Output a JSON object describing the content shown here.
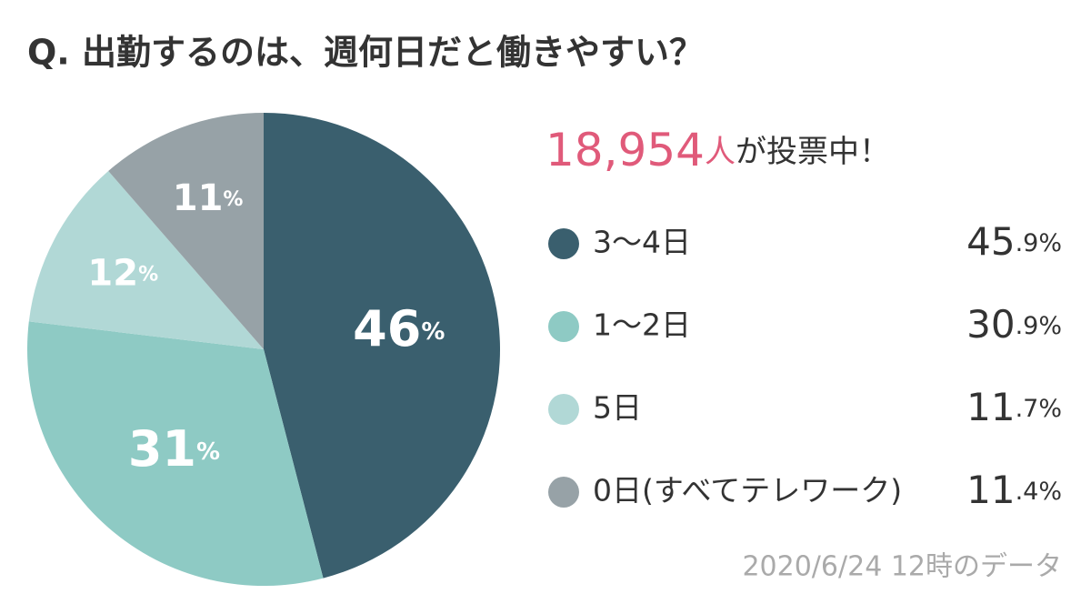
{
  "chart_data": {
    "type": "pie",
    "title": "Q. 出勤するのは、週何日だと働きやすい？",
    "vote_count": "18,954人",
    "vote_text": "が投票中！",
    "categories": [
      "3〜4日",
      "1〜2日",
      "5日",
      "0日(すべてテレワーク)"
    ],
    "values": [
      45.9,
      30.9,
      11.7,
      11.4
    ],
    "value_labels": [
      "45.9%",
      "30.9%",
      "11.7%",
      "11.4%"
    ],
    "slice_labels": [
      "46%",
      "31%",
      "12%",
      "11%"
    ],
    "colors": [
      "#3a5f6e",
      "#8ecac4",
      "#b1d8d6",
      "#97a2a7"
    ],
    "footnote": "2020/6/24 12時のデータ"
  }
}
